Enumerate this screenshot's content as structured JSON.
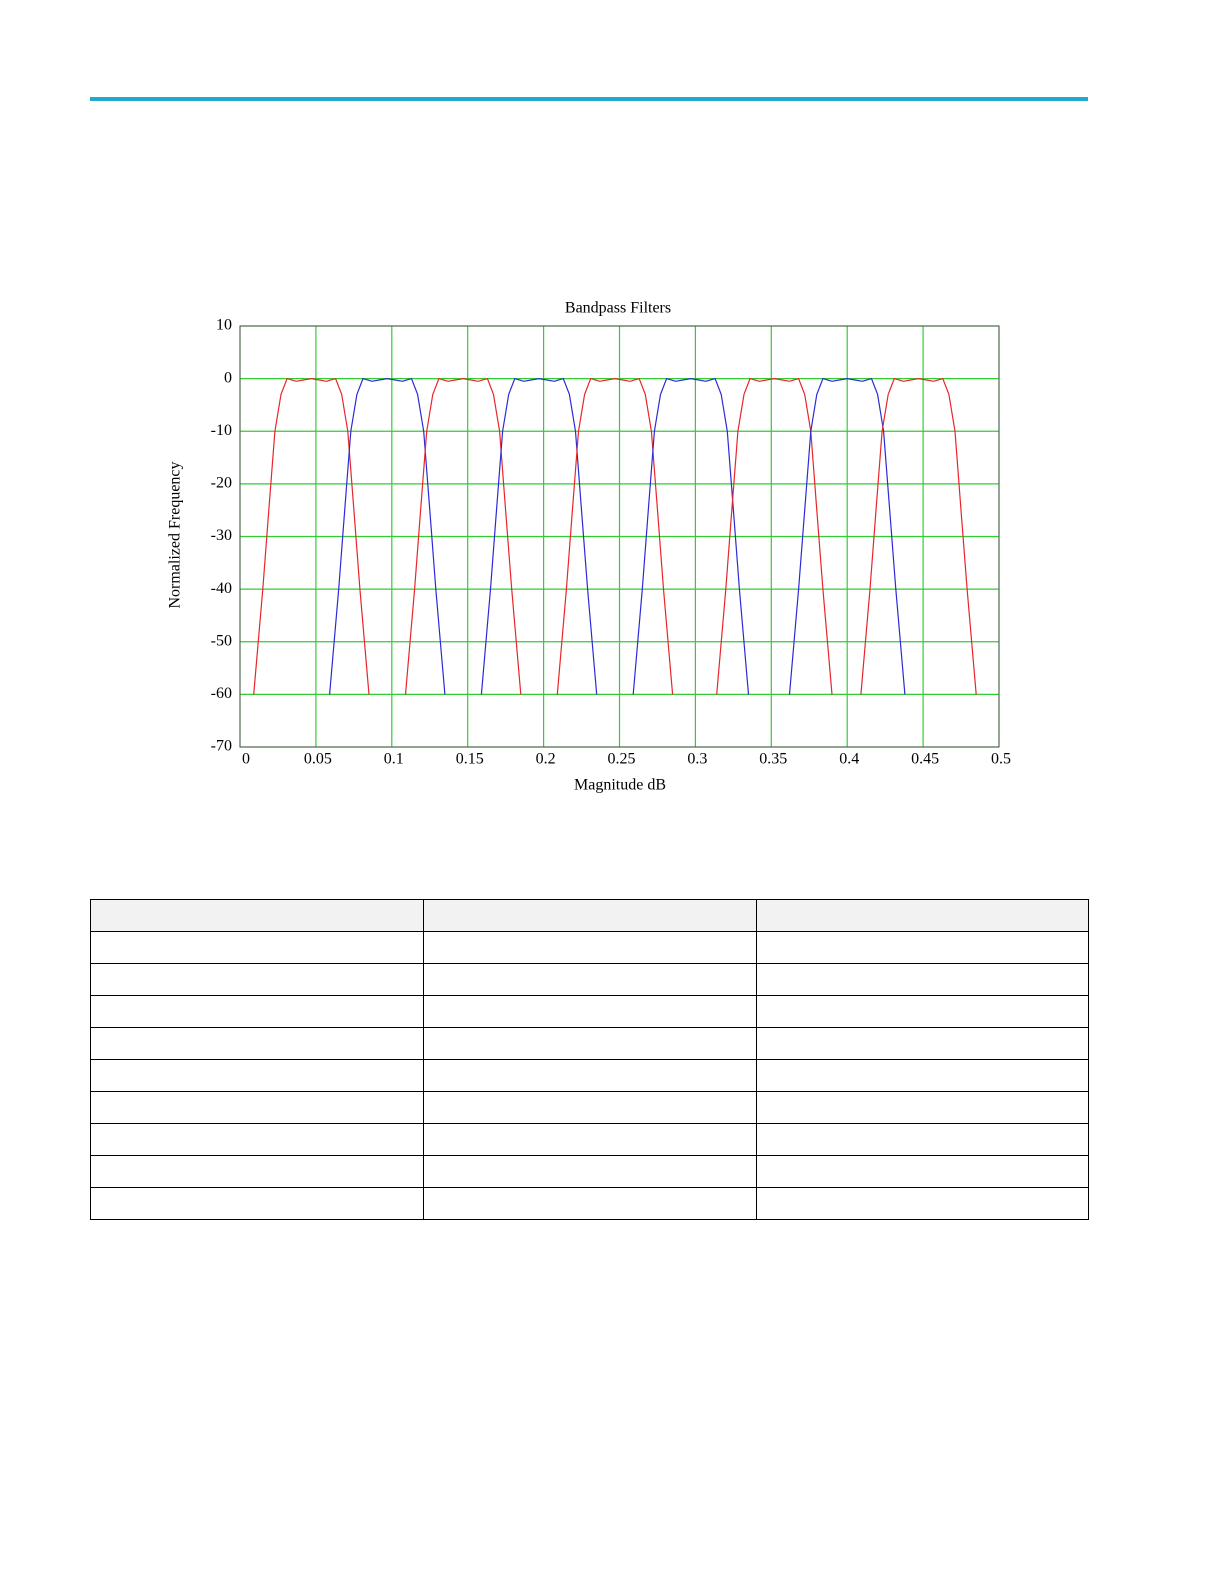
{
  "chart_data": {
    "type": "line",
    "title": "Bandpass Filters",
    "xlabel": "Magnitude dB",
    "ylabel": "Normalized Frequency",
    "xlim": [
      0,
      0.5
    ],
    "ylim": [
      -70,
      10
    ],
    "xticks": [
      0,
      0.05,
      0.1,
      0.15,
      0.2,
      0.25,
      0.3,
      0.35,
      0.4,
      0.45,
      0.5
    ],
    "yticks": [
      10,
      0,
      -10,
      -20,
      -30,
      -40,
      -50,
      -60,
      -70
    ],
    "grid": true,
    "grid_color": "#33cc33",
    "series": [
      {
        "color": "#e8262a",
        "x": [
          0.009,
          0.015,
          0.019,
          0.023,
          0.027,
          0.031,
          0.037,
          0.047,
          0.057,
          0.063,
          0.067,
          0.071,
          0.075,
          0.079,
          0.085
        ],
        "values": [
          -60,
          -40,
          -25,
          -10,
          -3,
          0,
          -0.5,
          0,
          -0.5,
          0,
          -3,
          -10,
          -25,
          -40,
          -60
        ]
      },
      {
        "color": "#2b2bd6",
        "x": [
          0.059,
          0.065,
          0.069,
          0.073,
          0.077,
          0.081,
          0.087,
          0.097,
          0.107,
          0.113,
          0.117,
          0.121,
          0.125,
          0.129,
          0.135
        ],
        "values": [
          -60,
          -40,
          -25,
          -10,
          -3,
          0,
          -0.5,
          0,
          -0.5,
          0,
          -3,
          -10,
          -25,
          -40,
          -60
        ]
      },
      {
        "color": "#e8262a",
        "x": [
          0.109,
          0.115,
          0.119,
          0.123,
          0.127,
          0.131,
          0.137,
          0.147,
          0.157,
          0.163,
          0.167,
          0.171,
          0.175,
          0.179,
          0.185
        ],
        "values": [
          -60,
          -40,
          -25,
          -10,
          -3,
          0,
          -0.5,
          0,
          -0.5,
          0,
          -3,
          -10,
          -25,
          -40,
          -60
        ]
      },
      {
        "color": "#2b2bd6",
        "x": [
          0.159,
          0.165,
          0.169,
          0.173,
          0.177,
          0.181,
          0.187,
          0.197,
          0.207,
          0.213,
          0.217,
          0.221,
          0.225,
          0.229,
          0.235
        ],
        "values": [
          -60,
          -40,
          -25,
          -10,
          -3,
          0,
          -0.5,
          0,
          -0.5,
          0,
          -3,
          -10,
          -25,
          -40,
          -60
        ]
      },
      {
        "color": "#e8262a",
        "x": [
          0.209,
          0.215,
          0.219,
          0.223,
          0.227,
          0.231,
          0.237,
          0.247,
          0.257,
          0.263,
          0.267,
          0.271,
          0.275,
          0.279,
          0.285
        ],
        "values": [
          -60,
          -40,
          -25,
          -10,
          -3,
          0,
          -0.5,
          0,
          -0.5,
          0,
          -3,
          -10,
          -25,
          -40,
          -60
        ]
      },
      {
        "color": "#2b2bd6",
        "x": [
          0.259,
          0.265,
          0.269,
          0.273,
          0.277,
          0.281,
          0.287,
          0.297,
          0.307,
          0.313,
          0.317,
          0.321,
          0.325,
          0.329,
          0.335
        ],
        "values": [
          -60,
          -40,
          -25,
          -10,
          -3,
          0,
          -0.5,
          0,
          -0.5,
          0,
          -3,
          -10,
          -25,
          -40,
          -60
        ]
      },
      {
        "color": "#e8262a",
        "x": [
          0.314,
          0.32,
          0.324,
          0.328,
          0.332,
          0.336,
          0.342,
          0.352,
          0.362,
          0.368,
          0.372,
          0.376,
          0.38,
          0.384,
          0.39
        ],
        "values": [
          -60,
          -40,
          -25,
          -10,
          -3,
          0,
          -0.5,
          0,
          -0.5,
          0,
          -3,
          -10,
          -25,
          -40,
          -60
        ]
      },
      {
        "color": "#2b2bd6",
        "x": [
          0.362,
          0.368,
          0.372,
          0.376,
          0.38,
          0.384,
          0.39,
          0.4,
          0.41,
          0.416,
          0.42,
          0.424,
          0.428,
          0.432,
          0.438
        ],
        "values": [
          -60,
          -40,
          -25,
          -10,
          -3,
          0,
          -0.5,
          0,
          -0.5,
          0,
          -3,
          -10,
          -25,
          -40,
          -60
        ]
      },
      {
        "color": "#e8262a",
        "x": [
          0.409,
          0.415,
          0.419,
          0.423,
          0.427,
          0.431,
          0.437,
          0.447,
          0.457,
          0.463,
          0.467,
          0.471,
          0.475,
          0.479,
          0.485
        ],
        "values": [
          -60,
          -40,
          -25,
          -10,
          -3,
          0,
          -0.5,
          0,
          -0.5,
          0,
          -3,
          -10,
          -25,
          -40,
          -60
        ]
      }
    ]
  }
}
